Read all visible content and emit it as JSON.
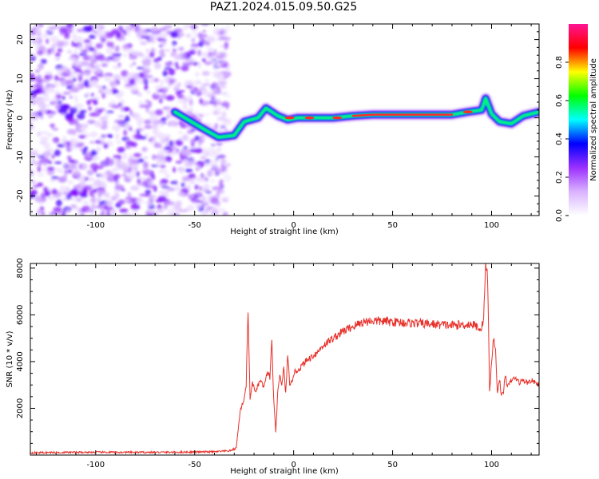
{
  "title": "PAZ1.2024.015.09.50.G25",
  "chart_data": [
    {
      "type": "heatmap",
      "xlabel": "Height of straight line (km)",
      "ylabel": "Frequency (Hz)",
      "xlim": [
        -133,
        124
      ],
      "ylim": [
        -25,
        24
      ],
      "xticks": [
        -100,
        -50,
        0,
        50,
        100
      ],
      "yticks": [
        -20,
        -10,
        0,
        10,
        20
      ],
      "colorbar": {
        "label": "Normalized spectral amplitude",
        "range": [
          0,
          1
        ],
        "ticks": [
          0.0,
          0.2,
          0.4,
          0.6,
          0.8
        ],
        "colormap": [
          "#ffffff",
          "#d9b3ff",
          "#9b30ff",
          "#0000ff",
          "#00ffff",
          "#00ff00",
          "#ffff00",
          "#ff0000",
          "#ff1493"
        ]
      },
      "noise_region_km": [
        -133,
        -33
      ],
      "signal_track": [
        {
          "x": -60,
          "y": 1.5
        },
        {
          "x": -50,
          "y": -1.5
        },
        {
          "x": -45,
          "y": -3
        },
        {
          "x": -38,
          "y": -5
        },
        {
          "x": -30,
          "y": -4.5
        },
        {
          "x": -25,
          "y": -1
        },
        {
          "x": -18,
          "y": 0
        },
        {
          "x": -14,
          "y": 2.5
        },
        {
          "x": -8,
          "y": 0.5
        },
        {
          "x": -3,
          "y": -0.5
        },
        {
          "x": 2,
          "y": 0
        },
        {
          "x": 10,
          "y": 0
        },
        {
          "x": 20,
          "y": 0
        },
        {
          "x": 30,
          "y": 0.5
        },
        {
          "x": 40,
          "y": 0.8
        },
        {
          "x": 60,
          "y": 0.8
        },
        {
          "x": 80,
          "y": 0.8
        },
        {
          "x": 88,
          "y": 1.5
        },
        {
          "x": 95,
          "y": 2
        },
        {
          "x": 97,
          "y": 5
        },
        {
          "x": 100,
          "y": 1
        },
        {
          "x": 104,
          "y": -1
        },
        {
          "x": 110,
          "y": -1.5
        },
        {
          "x": 116,
          "y": 0.5
        },
        {
          "x": 124,
          "y": 1.5
        }
      ]
    },
    {
      "type": "line",
      "xlabel": "Height of straight line (km)",
      "ylabel": "SNR (10 * v/v)",
      "xlim": [
        -133,
        124
      ],
      "ylim": [
        0,
        8200
      ],
      "xticks": [
        -100,
        -50,
        0,
        50,
        100
      ],
      "yticks": [
        2000,
        4000,
        6000,
        8000
      ],
      "series_color": "#e8302a",
      "x": [
        -133,
        -120,
        -100,
        -80,
        -60,
        -40,
        -32,
        -29,
        -27,
        -25,
        -24,
        -23,
        -22,
        -21,
        -19,
        -17,
        -15,
        -13,
        -12,
        -11,
        -10,
        -9,
        -8,
        -7,
        -6,
        -5,
        -4,
        -3,
        -2,
        -1,
        0,
        3,
        6,
        9,
        12,
        15,
        20,
        25,
        30,
        35,
        40,
        50,
        60,
        70,
        80,
        90,
        95,
        96,
        97,
        98,
        99,
        100,
        101,
        102,
        103,
        104,
        105,
        106,
        107,
        108,
        110,
        112,
        114,
        116,
        118,
        120,
        124
      ],
      "y": [
        100,
        110,
        120,
        115,
        120,
        140,
        180,
        300,
        1900,
        2400,
        3000,
        6200,
        2300,
        3100,
        2700,
        3200,
        2900,
        3600,
        3300,
        4900,
        2200,
        1000,
        2700,
        3400,
        3000,
        3700,
        2600,
        4400,
        2900,
        3100,
        3500,
        3700,
        4000,
        4200,
        4400,
        4700,
        5000,
        5300,
        5500,
        5700,
        5750,
        5700,
        5650,
        5600,
        5550,
        5600,
        5400,
        6000,
        8100,
        7600,
        2700,
        4000,
        5000,
        4500,
        2600,
        3300,
        2500,
        2700,
        3500,
        2900,
        3200,
        3300,
        3100,
        3200,
        3100,
        3200,
        3000
      ]
    }
  ]
}
